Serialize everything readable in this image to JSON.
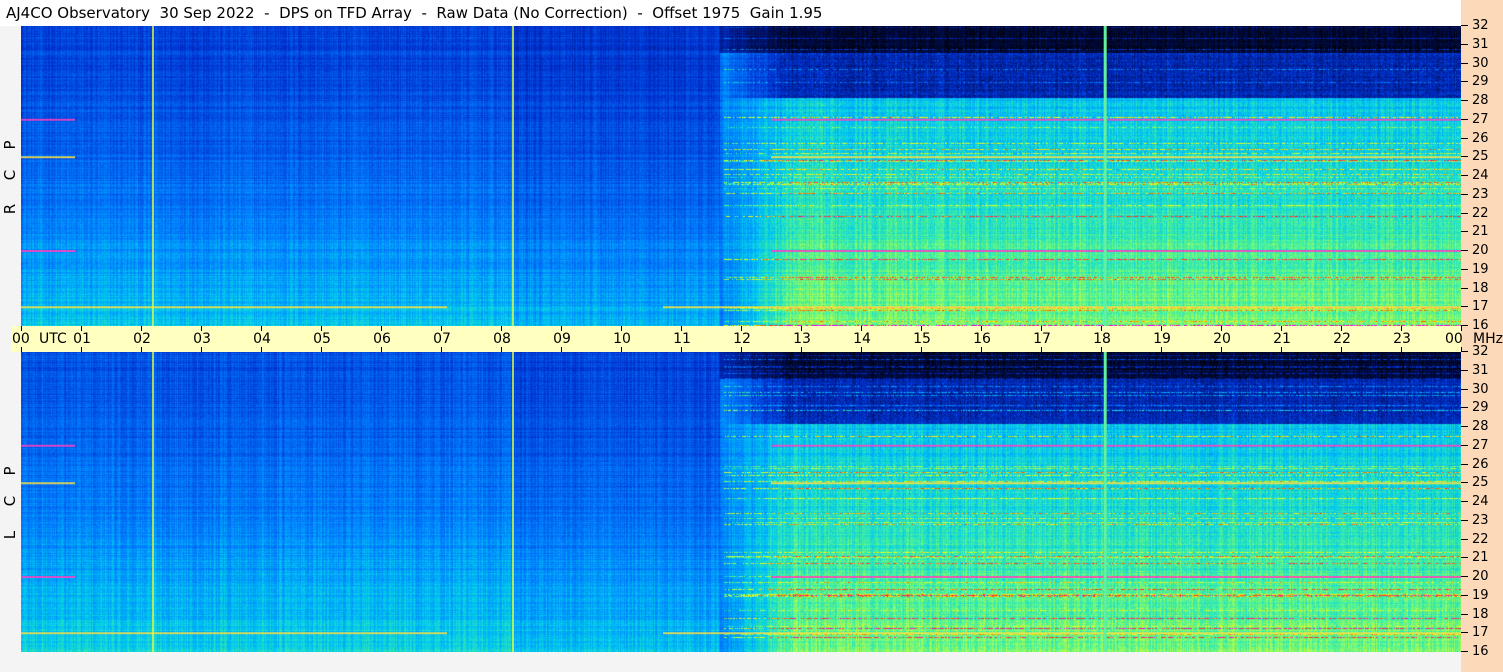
{
  "title": "AJ4CO Observatory  30 Sep 2022  -  DPS on TFD Array  -  Raw Data (No Correction)  -  Offset 1975  Gain 1.95",
  "chart_data": [
    {
      "type": "heatmap",
      "panel": "RCP",
      "side_label": [
        "R",
        "C",
        "P"
      ],
      "x_unit": "UTC",
      "y_unit": "MHz",
      "xlim": [
        0,
        24
      ],
      "ylim": [
        16,
        32
      ],
      "x_ticks": [
        "00",
        "01",
        "02",
        "03",
        "04",
        "05",
        "06",
        "07",
        "08",
        "09",
        "10",
        "11",
        "12",
        "13",
        "14",
        "15",
        "16",
        "17",
        "18",
        "19",
        "20",
        "21",
        "22",
        "23",
        "00"
      ],
      "y_ticks": [
        "32",
        "31",
        "30",
        "29",
        "28",
        "27",
        "26",
        "25",
        "24",
        "23",
        "22",
        "21",
        "20",
        "19",
        "18",
        "17",
        "16"
      ],
      "colormap": [
        "#000000",
        "#001060",
        "#0030d0",
        "#0080ff",
        "#00c8f0",
        "#40f0a0",
        "#c0ff40",
        "#ffff00",
        "#ff3000",
        "#ff00ff"
      ],
      "vertical_lines_utc": [
        2.2,
        8.2,
        18.07
      ],
      "persistent_bands_mhz": [
        17.0,
        20.0,
        25.0,
        27.0
      ]
    },
    {
      "type": "heatmap",
      "panel": "LCP",
      "side_label": [
        "L",
        "C",
        "P"
      ],
      "x_unit": "UTC",
      "y_unit": "MHz",
      "xlim": [
        0,
        24
      ],
      "ylim": [
        16,
        32
      ],
      "y_ticks": [
        "32",
        "31",
        "30",
        "29",
        "28",
        "27",
        "26",
        "25",
        "24",
        "23",
        "22",
        "21",
        "20",
        "19",
        "18",
        "17",
        "16"
      ],
      "vertical_lines_utc": [
        2.2,
        8.2,
        18.07
      ],
      "persistent_bands_mhz": [
        17.0,
        20.0,
        25.0,
        27.0
      ]
    }
  ],
  "time_axis": {
    "unit_label": "UTC",
    "end_unit_label": "MHz"
  }
}
